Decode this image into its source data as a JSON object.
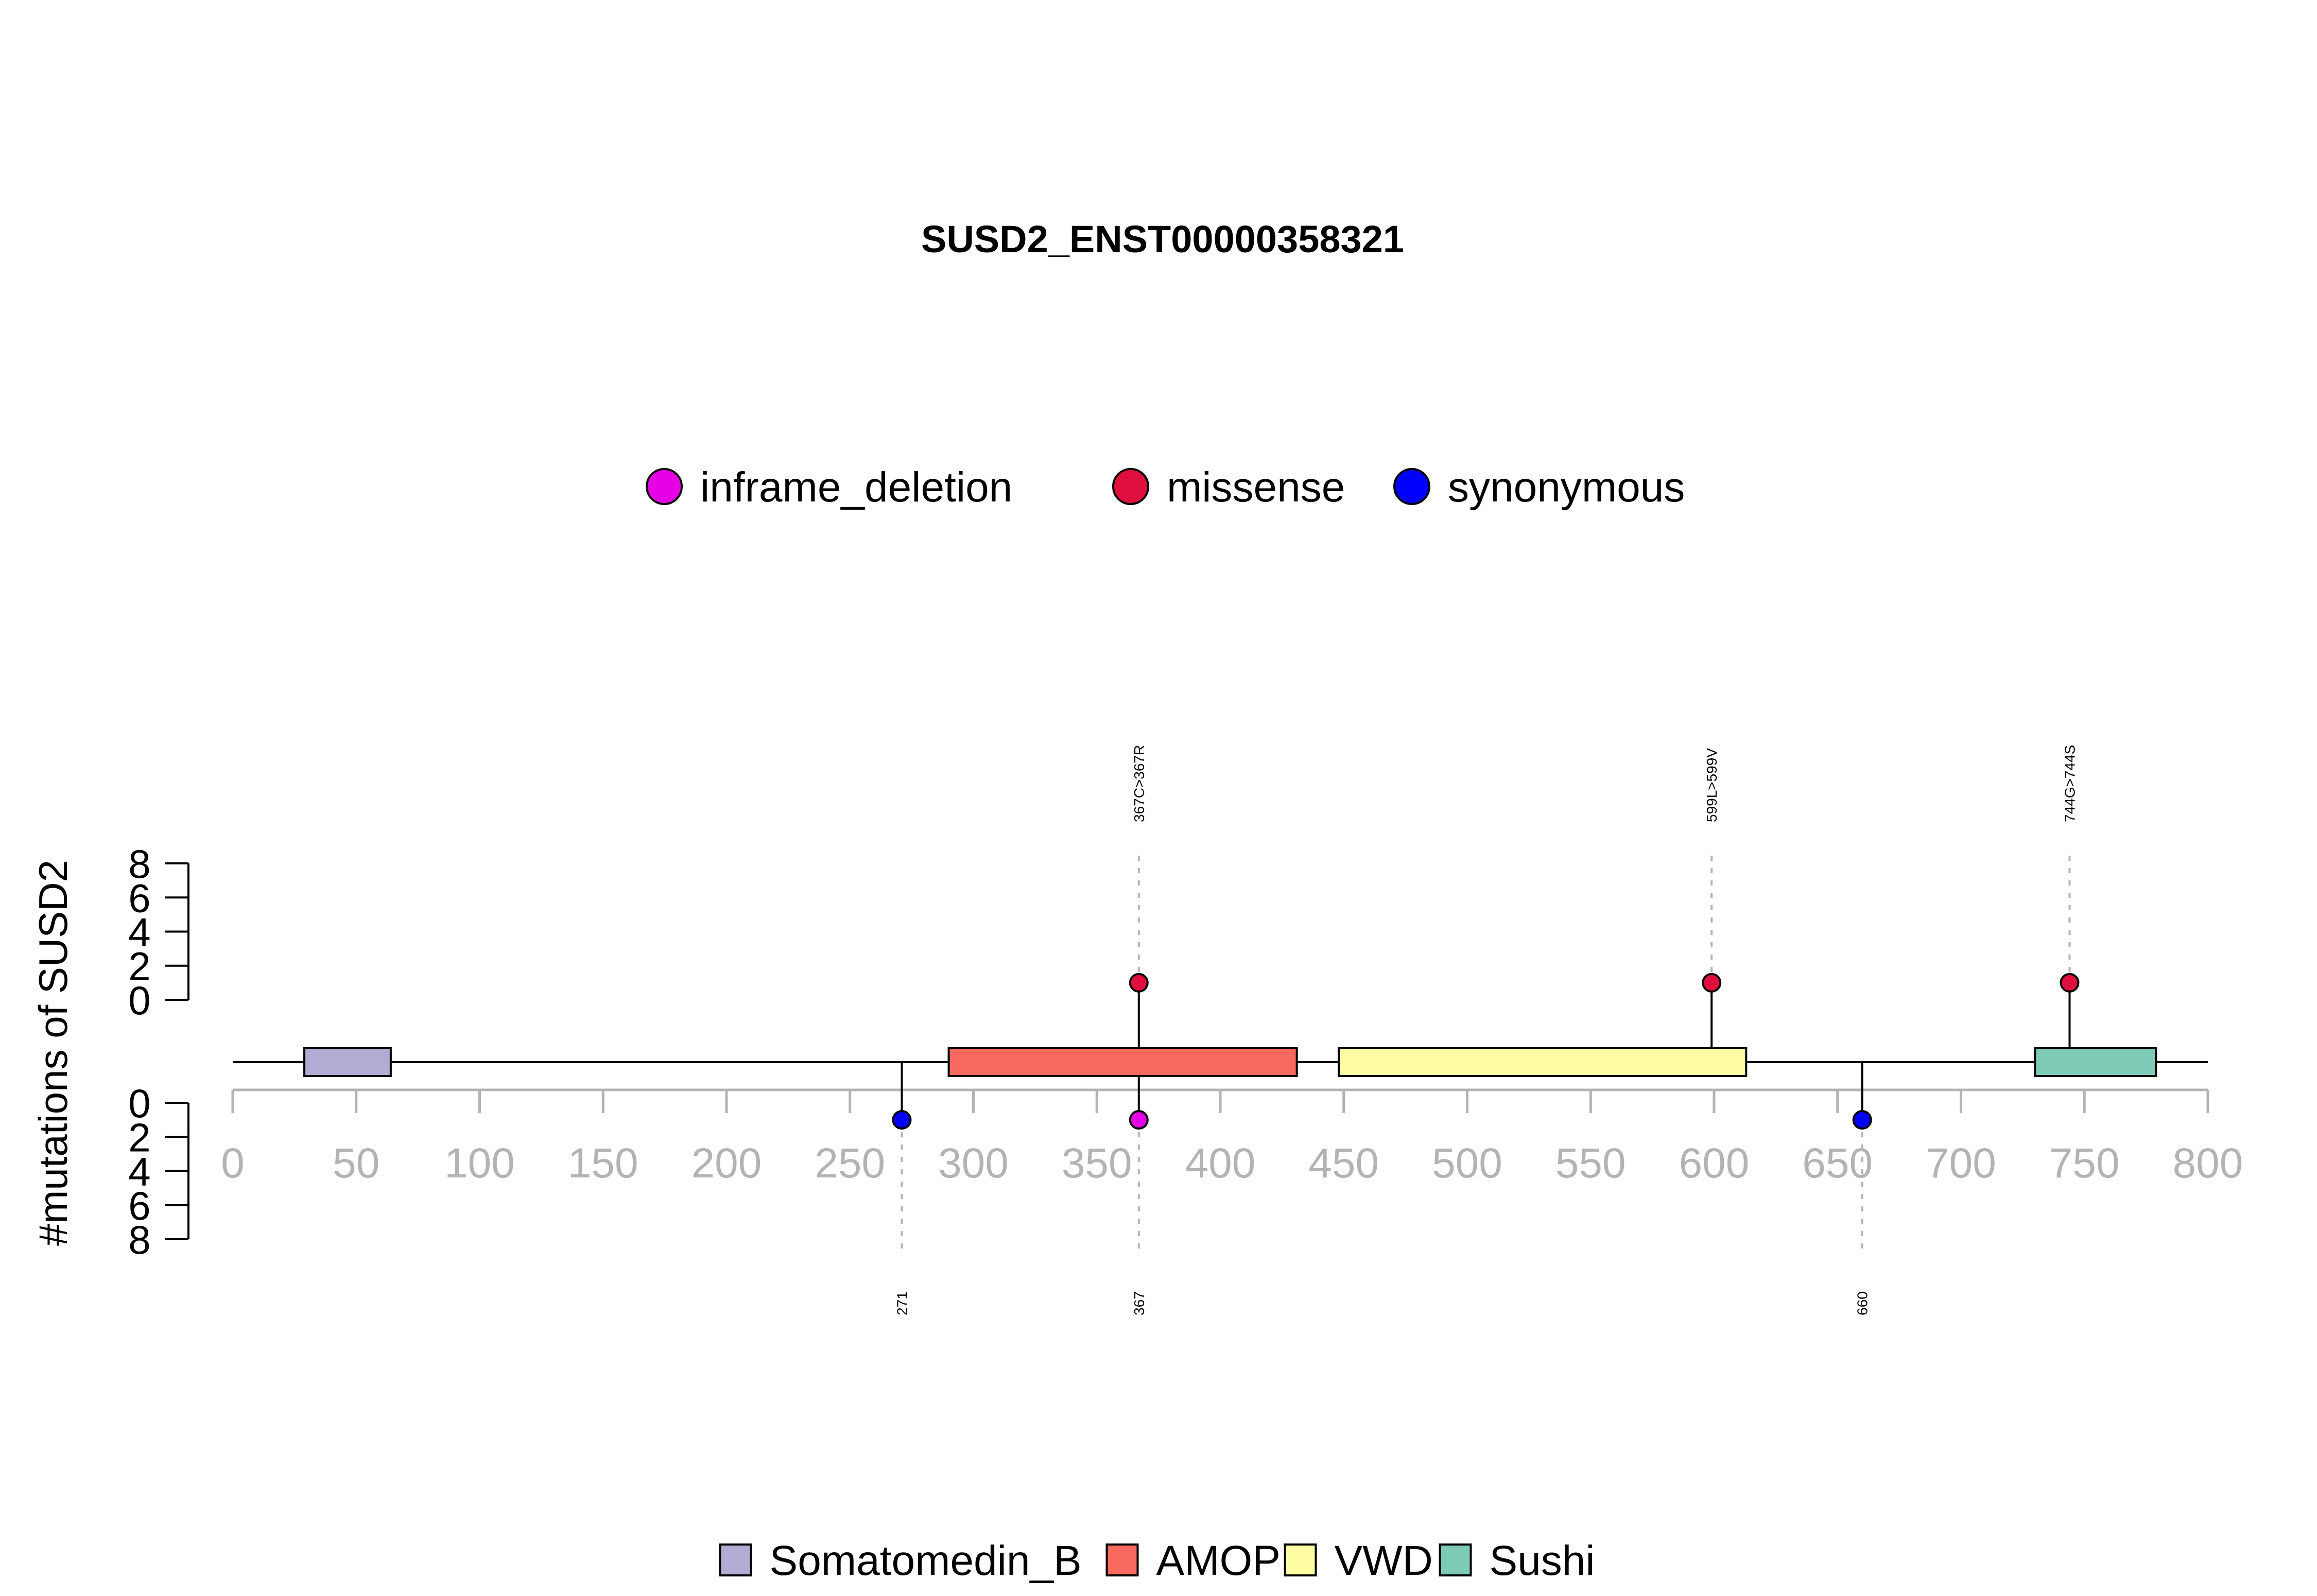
{
  "chart_data": {
    "type": "lollipop",
    "title": "SUSD2_ENST00000358321",
    "ylabel": "#mutations of SUSD2",
    "xlim": [
      0,
      800
    ],
    "x_ticks": [
      0,
      50,
      100,
      150,
      200,
      250,
      300,
      350,
      400,
      450,
      500,
      550,
      600,
      650,
      700,
      750,
      800
    ],
    "y_ticks_top": [
      0,
      2,
      4,
      6,
      8
    ],
    "y_ticks_bottom": [
      0,
      2,
      4,
      6,
      8
    ],
    "ylim": [
      0,
      8
    ],
    "mutation_legend": [
      {
        "name": "inframe_deletion",
        "color": "#E600E6"
      },
      {
        "name": "missense",
        "color": "#E0103E"
      },
      {
        "name": "synonymous",
        "color": "#0000FF"
      }
    ],
    "domain_legend": [
      {
        "name": "Somatomedin_B",
        "color": "#B3ABD4"
      },
      {
        "name": "AMOP",
        "color": "#F8695E"
      },
      {
        "name": "VWD",
        "color": "#FFFDA3"
      },
      {
        "name": "Sushi",
        "color": "#7DCBB6"
      }
    ],
    "domains": [
      {
        "name": "Somatomedin_B",
        "start": 29,
        "end": 64,
        "color": "#B3ABD4"
      },
      {
        "name": "AMOP",
        "start": 290,
        "end": 431,
        "color": "#F8695E"
      },
      {
        "name": "VWD",
        "start": 448,
        "end": 613,
        "color": "#FFFDA3"
      },
      {
        "name": "Sushi",
        "start": 730,
        "end": 779,
        "color": "#7DCBB6"
      }
    ],
    "mutations_top": [
      {
        "position": 367,
        "count": 1,
        "type": "missense",
        "label": "367C>367R",
        "color": "#E0103E"
      },
      {
        "position": 599,
        "count": 1,
        "type": "missense",
        "label": "599L>599V",
        "color": "#E0103E"
      },
      {
        "position": 744,
        "count": 1,
        "type": "missense",
        "label": "744G>744S",
        "color": "#E0103E"
      }
    ],
    "mutations_bottom": [
      {
        "position": 271,
        "count": 1,
        "type": "synonymous",
        "label": "271",
        "color": "#0000FF"
      },
      {
        "position": 367,
        "count": 1,
        "type": "inframe_deletion",
        "label": "367",
        "color": "#E600E6"
      },
      {
        "position": 660,
        "count": 1,
        "type": "synonymous",
        "label": "660",
        "color": "#0000FF"
      }
    ]
  }
}
